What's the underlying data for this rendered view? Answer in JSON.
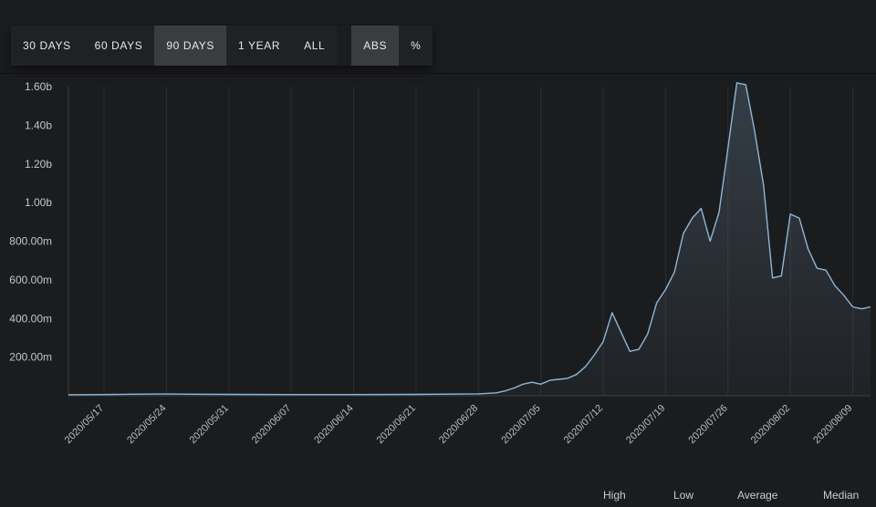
{
  "toolbar": {
    "ranges": [
      "30 DAYS",
      "60 DAYS",
      "90 DAYS",
      "1 YEAR",
      "ALL"
    ],
    "active_range": "90 DAYS",
    "modes": [
      "ABS",
      "%"
    ],
    "active_mode": "ABS"
  },
  "stats_labels": [
    "High",
    "Low",
    "Average",
    "Median"
  ],
  "colors": {
    "background": "#1b1c1e",
    "line": "#8fb6d6",
    "grid": "#2a2c2f",
    "active_button": "#3a3c40"
  },
  "chart_data": {
    "type": "area",
    "title": "",
    "xlabel": "",
    "ylabel": "",
    "x_ticks": [
      "2020/05/17",
      "2020/05/24",
      "2020/05/31",
      "2020/06/07",
      "2020/06/14",
      "2020/06/21",
      "2020/06/28",
      "2020/07/05",
      "2020/07/12",
      "2020/07/19",
      "2020/07/26",
      "2020/08/02",
      "2020/08/09"
    ],
    "y_ticks": [
      "200.00m",
      "400.00m",
      "600.00m",
      "800.00m",
      "1.00b",
      "1.20b",
      "1.40b",
      "1.60b"
    ],
    "y_tick_values": [
      200000000,
      400000000,
      600000000,
      800000000,
      1000000000,
      1200000000,
      1400000000,
      1600000000
    ],
    "ylim": [
      0,
      1600000000
    ],
    "xlim": [
      "2020/05/13",
      "2020/08/11"
    ],
    "grid": true,
    "series": [
      {
        "x": [
          "2020/05/13",
          "2020/05/17",
          "2020/05/20",
          "2020/05/24",
          "2020/05/27",
          "2020/05/31",
          "2020/06/07",
          "2020/06/14",
          "2020/06/21",
          "2020/06/28",
          "2020/06/30",
          "2020/07/01",
          "2020/07/02",
          "2020/07/03",
          "2020/07/04",
          "2020/07/05",
          "2020/07/06",
          "2020/07/07",
          "2020/07/08",
          "2020/07/09",
          "2020/07/10",
          "2020/07/11",
          "2020/07/12",
          "2020/07/13",
          "2020/07/14",
          "2020/07/15",
          "2020/07/16",
          "2020/07/17",
          "2020/07/18",
          "2020/07/19",
          "2020/07/20",
          "2020/07/21",
          "2020/07/22",
          "2020/07/23",
          "2020/07/24",
          "2020/07/25",
          "2020/07/26",
          "2020/07/27",
          "2020/07/28",
          "2020/07/29",
          "2020/07/30",
          "2020/07/31",
          "2020/08/01",
          "2020/08/02",
          "2020/08/03",
          "2020/08/04",
          "2020/08/05",
          "2020/08/06",
          "2020/08/07",
          "2020/08/08",
          "2020/08/09",
          "2020/08/10",
          "2020/08/11"
        ],
        "values": [
          5000000,
          6000000,
          8000000,
          9000000,
          8000000,
          7000000,
          6000000,
          6000000,
          7000000,
          10000000,
          15000000,
          25000000,
          40000000,
          60000000,
          70000000,
          60000000,
          80000000,
          85000000,
          90000000,
          110000000,
          150000000,
          210000000,
          280000000,
          430000000,
          330000000,
          230000000,
          240000000,
          320000000,
          480000000,
          550000000,
          640000000,
          840000000,
          920000000,
          970000000,
          800000000,
          950000000,
          1280000000,
          1620000000,
          1610000000,
          1370000000,
          1090000000,
          610000000,
          620000000,
          940000000,
          920000000,
          760000000,
          660000000,
          650000000,
          570000000,
          520000000,
          460000000,
          450000000,
          460000000
        ]
      }
    ]
  }
}
